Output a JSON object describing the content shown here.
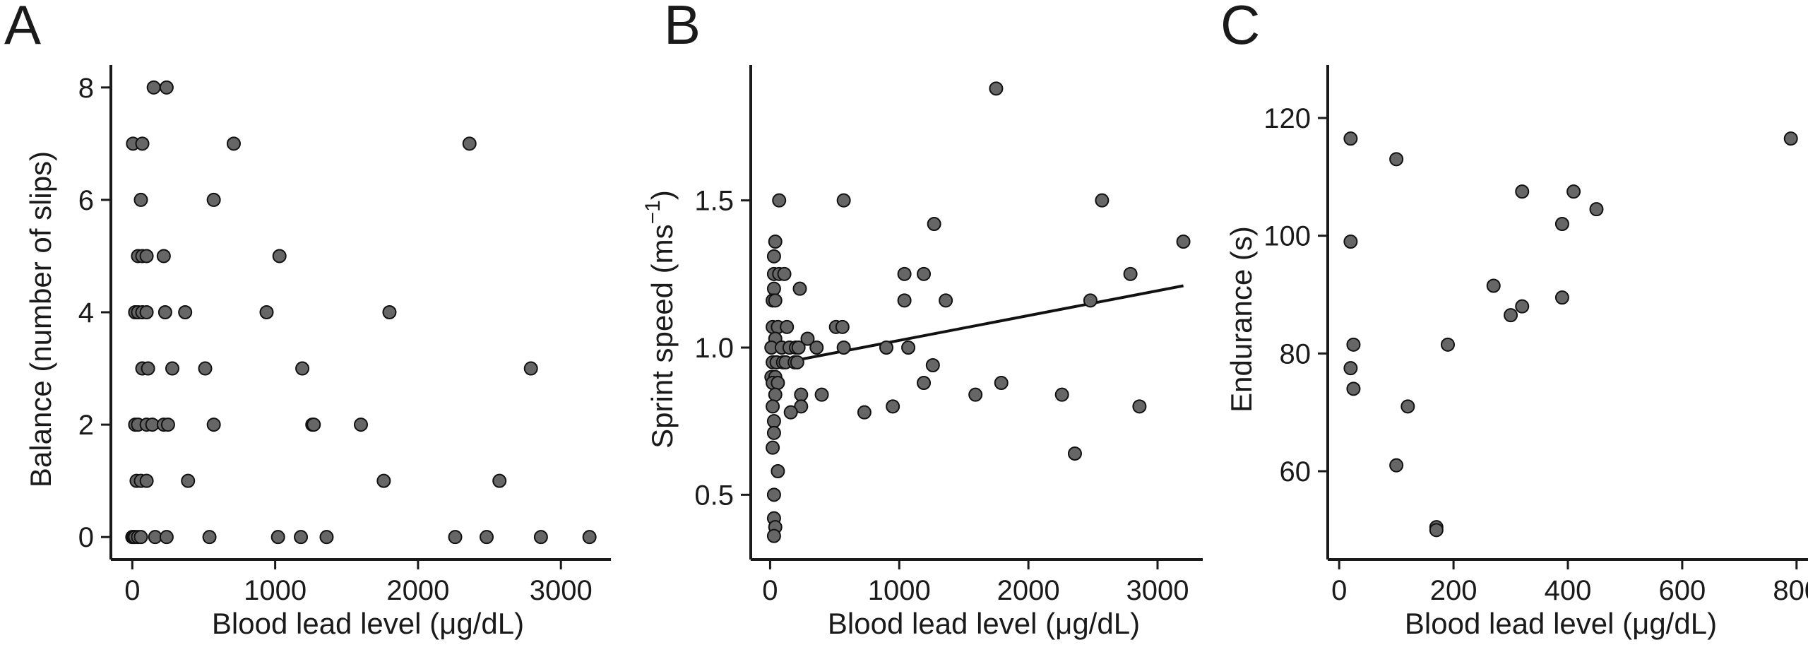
{
  "chart_data": [
    {
      "type": "scatter",
      "panel_label": "A",
      "xlabel": "Blood lead level (μg/dL)",
      "ylabel": "Balance (number of slips)",
      "xlim": [
        -150,
        3350
      ],
      "ylim": [
        -0.4,
        8.4
      ],
      "xticks": [
        0,
        1000,
        2000,
        3000
      ],
      "yticks": [
        0,
        2,
        4,
        6,
        8
      ],
      "points": [
        [
          150,
          8
        ],
        [
          240,
          8
        ],
        [
          5,
          7
        ],
        [
          70,
          7
        ],
        [
          710,
          7
        ],
        [
          2360,
          7
        ],
        [
          60,
          6
        ],
        [
          570,
          6
        ],
        [
          40,
          5
        ],
        [
          70,
          5
        ],
        [
          100,
          5
        ],
        [
          220,
          5
        ],
        [
          1030,
          5
        ],
        [
          20,
          4
        ],
        [
          40,
          4
        ],
        [
          70,
          4
        ],
        [
          100,
          4
        ],
        [
          230,
          4
        ],
        [
          370,
          4
        ],
        [
          940,
          4
        ],
        [
          1800,
          4
        ],
        [
          70,
          3
        ],
        [
          110,
          3
        ],
        [
          280,
          3
        ],
        [
          510,
          3
        ],
        [
          1190,
          3
        ],
        [
          2790,
          3
        ],
        [
          20,
          2
        ],
        [
          40,
          2
        ],
        [
          100,
          2
        ],
        [
          140,
          2
        ],
        [
          220,
          2
        ],
        [
          250,
          2
        ],
        [
          570,
          2
        ],
        [
          1260,
          2
        ],
        [
          1270,
          2
        ],
        [
          1600,
          2
        ],
        [
          30,
          1
        ],
        [
          60,
          1
        ],
        [
          100,
          1
        ],
        [
          390,
          1
        ],
        [
          1760,
          1
        ],
        [
          2570,
          1
        ],
        [
          0,
          0
        ],
        [
          10,
          0
        ],
        [
          20,
          0
        ],
        [
          40,
          0
        ],
        [
          60,
          0
        ],
        [
          160,
          0
        ],
        [
          240,
          0
        ],
        [
          540,
          0
        ],
        [
          1020,
          0
        ],
        [
          1180,
          0
        ],
        [
          1360,
          0
        ],
        [
          2260,
          0
        ],
        [
          2480,
          0
        ],
        [
          2860,
          0
        ],
        [
          3200,
          0
        ]
      ]
    },
    {
      "type": "scatter",
      "panel_label": "B",
      "xlabel": "Blood lead level (μg/dL)",
      "ylabel": "Sprint speed (ms",
      "ylabel_superscript": "−1",
      "ylabel_close": ")",
      "xlim": [
        -150,
        3350
      ],
      "ylim": [
        0.28,
        1.96
      ],
      "xticks": [
        0,
        1000,
        2000,
        3000
      ],
      "yticks": [
        0.5,
        1.0,
        1.5
      ],
      "ytick_labels": [
        "0.5",
        "1.0",
        "1.5"
      ],
      "fit_line": [
        [
          0,
          0.94
        ],
        [
          3200,
          1.21
        ]
      ],
      "points": [
        [
          1750,
          1.88
        ],
        [
          70,
          1.5
        ],
        [
          570,
          1.5
        ],
        [
          2570,
          1.5
        ],
        [
          1270,
          1.42
        ],
        [
          40,
          1.36
        ],
        [
          3200,
          1.36
        ],
        [
          30,
          1.31
        ],
        [
          30,
          1.25
        ],
        [
          70,
          1.25
        ],
        [
          110,
          1.25
        ],
        [
          1040,
          1.25
        ],
        [
          1190,
          1.25
        ],
        [
          2790,
          1.25
        ],
        [
          30,
          1.2
        ],
        [
          230,
          1.2
        ],
        [
          20,
          1.16
        ],
        [
          40,
          1.16
        ],
        [
          1040,
          1.16
        ],
        [
          1360,
          1.16
        ],
        [
          2480,
          1.16
        ],
        [
          20,
          1.07
        ],
        [
          60,
          1.07
        ],
        [
          130,
          1.07
        ],
        [
          510,
          1.07
        ],
        [
          560,
          1.07
        ],
        [
          40,
          1.03
        ],
        [
          290,
          1.03
        ],
        [
          10,
          1.0
        ],
        [
          90,
          1.0
        ],
        [
          150,
          1.0
        ],
        [
          200,
          1.0
        ],
        [
          220,
          1.0
        ],
        [
          360,
          1.0
        ],
        [
          570,
          1.0
        ],
        [
          900,
          1.0
        ],
        [
          1070,
          1.0
        ],
        [
          20,
          0.95
        ],
        [
          50,
          0.95
        ],
        [
          100,
          0.95
        ],
        [
          120,
          0.95
        ],
        [
          190,
          0.95
        ],
        [
          210,
          0.95
        ],
        [
          1260,
          0.94
        ],
        [
          10,
          0.9
        ],
        [
          40,
          0.9
        ],
        [
          20,
          0.88
        ],
        [
          60,
          0.88
        ],
        [
          1190,
          0.88
        ],
        [
          1790,
          0.88
        ],
        [
          40,
          0.84
        ],
        [
          240,
          0.84
        ],
        [
          400,
          0.84
        ],
        [
          1590,
          0.84
        ],
        [
          2260,
          0.84
        ],
        [
          20,
          0.8
        ],
        [
          240,
          0.8
        ],
        [
          950,
          0.8
        ],
        [
          2860,
          0.8
        ],
        [
          160,
          0.78
        ],
        [
          730,
          0.78
        ],
        [
          30,
          0.75
        ],
        [
          30,
          0.71
        ],
        [
          20,
          0.66
        ],
        [
          2360,
          0.64
        ],
        [
          60,
          0.58
        ],
        [
          30,
          0.5
        ],
        [
          30,
          0.42
        ],
        [
          40,
          0.39
        ],
        [
          30,
          0.36
        ]
      ]
    },
    {
      "type": "scatter",
      "panel_label": "C",
      "xlabel": "Blood lead level (μg/dL)",
      "ylabel": "Endurance (s)",
      "xlim": [
        -20,
        820
      ],
      "ylim": [
        45,
        129
      ],
      "xticks": [
        0,
        200,
        400,
        600,
        800
      ],
      "yticks": [
        60,
        80,
        100,
        120
      ],
      "points": [
        [
          20,
          116.5
        ],
        [
          790,
          116.5
        ],
        [
          100,
          113
        ],
        [
          320,
          107.5
        ],
        [
          410,
          107.5
        ],
        [
          450,
          104.5
        ],
        [
          390,
          102
        ],
        [
          20,
          99
        ],
        [
          270,
          91.5
        ],
        [
          390,
          89.5
        ],
        [
          320,
          88
        ],
        [
          300,
          86.5
        ],
        [
          25,
          81.5
        ],
        [
          190,
          81.5
        ],
        [
          20,
          77.5
        ],
        [
          25,
          74
        ],
        [
          120,
          71
        ],
        [
          100,
          61
        ],
        [
          170,
          50.5
        ],
        [
          170,
          50
        ]
      ]
    }
  ]
}
